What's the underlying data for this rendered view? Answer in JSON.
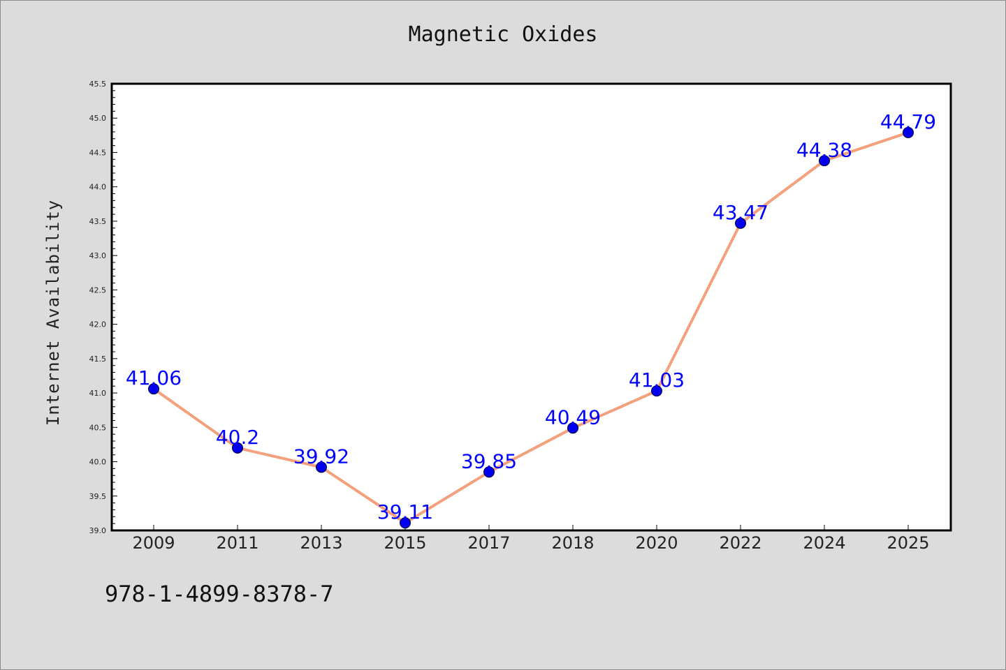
{
  "chart_data": {
    "type": "line",
    "title": "Magnetic Oxides",
    "xlabel": "",
    "ylabel": "Internet Availability",
    "categories": [
      "2009",
      "2011",
      "2013",
      "2015",
      "2017",
      "2018",
      "2020",
      "2022",
      "2024",
      "2025"
    ],
    "series": [
      {
        "values": [
          41.06,
          40.2,
          39.92,
          39.11,
          39.85,
          40.49,
          41.03,
          43.47,
          44.38,
          44.79
        ],
        "labels": [
          "41.06",
          "40.2",
          "39.92",
          "39.11",
          "39.85",
          "40.49",
          "41.03",
          "43.47",
          "44.38",
          "44.79"
        ]
      }
    ],
    "ylim": [
      39.0,
      45.5
    ],
    "yticks": [
      "39.0",
      "39.5",
      "40.0",
      "40.5",
      "41.0",
      "41.5",
      "42.0",
      "42.5",
      "43.0",
      "43.5",
      "44.0",
      "44.5",
      "45.0",
      "45.5"
    ],
    "grid": false,
    "colors": {
      "line": "#f4a07c",
      "marker": "#0000ee",
      "label": "#0000ff",
      "background": "#dcdcdc",
      "plot_area": "#ffffff"
    }
  },
  "footnote": "978-1-4899-8378-7"
}
